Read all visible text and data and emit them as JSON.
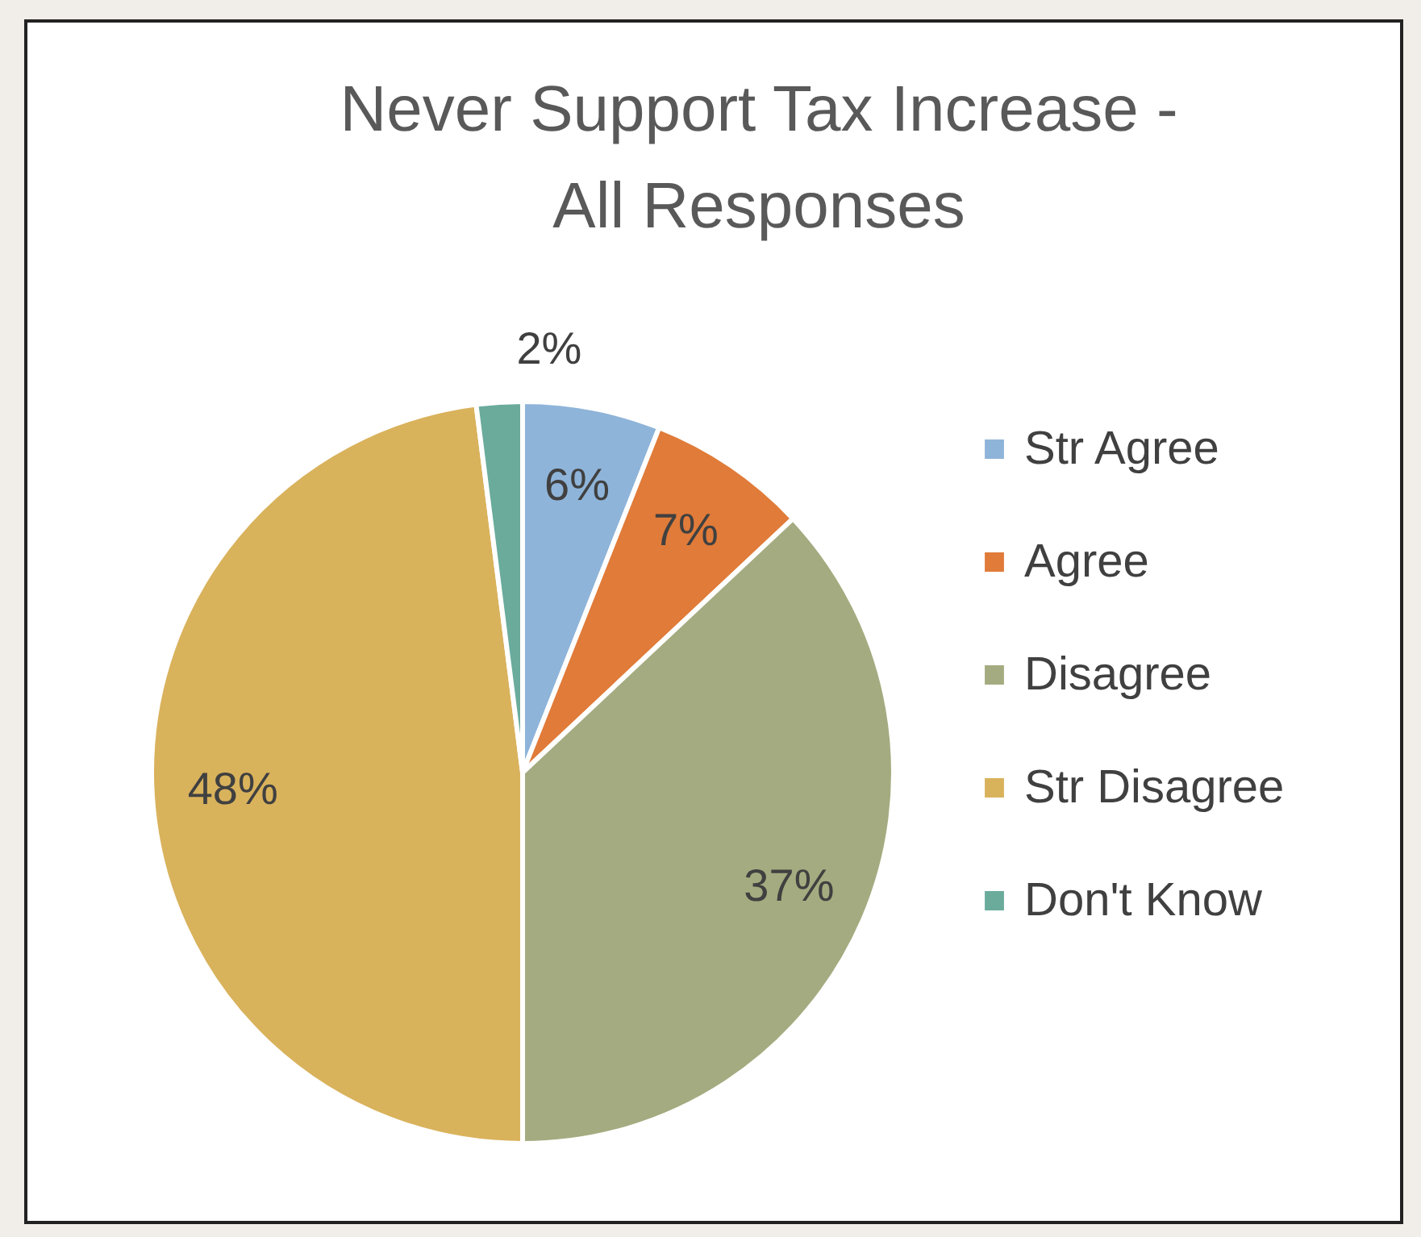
{
  "chart_data": {
    "type": "pie",
    "title": "Never Support Tax Increase - All Responses",
    "categories": [
      "Str Agree",
      "Agree",
      "Disagree",
      "Str Disagree",
      "Don't Know"
    ],
    "values": [
      6,
      7,
      37,
      48,
      2
    ],
    "colors": [
      "#8fb4d9",
      "#e07b39",
      "#a5ab80",
      "#d9b25c",
      "#6aab9c"
    ],
    "value_labels": [
      "6%",
      "7%",
      "37%",
      "48%",
      "2%"
    ],
    "legend": "right"
  }
}
